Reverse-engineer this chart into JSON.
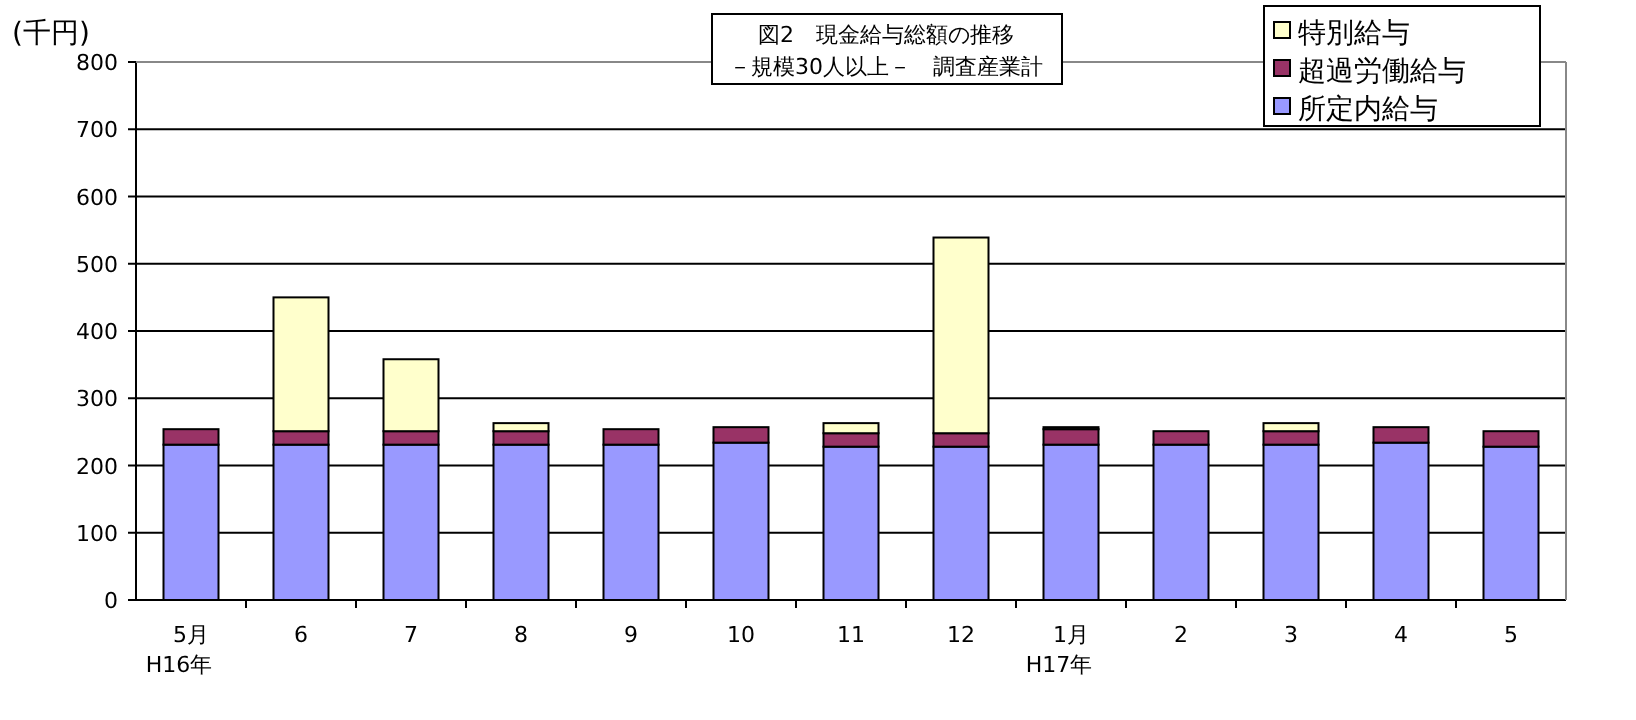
{
  "chart_data": {
    "type": "bar",
    "stacked": true,
    "title": "図2　現金給与総額の推移",
    "subtitle": "－規模30人以上－　調査産業計",
    "ylabel": "(千円)",
    "categories": [
      "5月\nH16年",
      "6",
      "7",
      "8",
      "9",
      "10",
      "11",
      "12",
      "1月\nH17年",
      "2",
      "3",
      "4",
      "5"
    ],
    "series": [
      {
        "name": "所定内給与",
        "color": "#9999ff",
        "values": [
          231,
          231,
          231,
          231,
          231,
          234,
          228,
          228,
          231,
          231,
          231,
          234,
          228
        ]
      },
      {
        "name": "超過労働給与",
        "color": "#993366",
        "values": [
          23,
          20,
          20,
          20,
          23,
          23,
          20,
          20,
          23,
          20,
          20,
          23,
          23
        ]
      },
      {
        "name": "特別給与",
        "color": "#ffffcc",
        "values": [
          0,
          199,
          107,
          12,
          0,
          0,
          15,
          291,
          3,
          0,
          12,
          0,
          0
        ]
      }
    ],
    "ylim": [
      0,
      800
    ],
    "yticks": [
      0,
      100,
      200,
      300,
      400,
      500,
      600,
      700,
      800
    ],
    "grid": "y",
    "legend": "top right"
  }
}
